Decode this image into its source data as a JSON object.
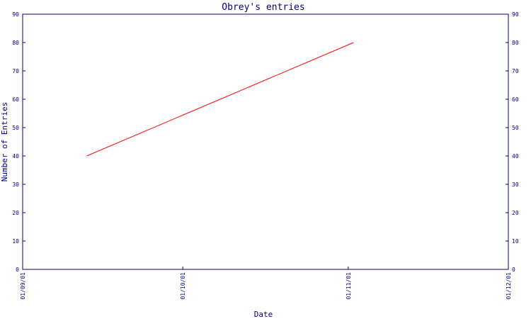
{
  "chart_data": {
    "type": "line",
    "title": "Obrey's entries",
    "xlabel": "Date",
    "ylabel": "Number of Entries",
    "x_ticks": [
      {
        "label": "01/09/01",
        "date": "2001-09-01"
      },
      {
        "label": "01/10/01",
        "date": "2001-10-01"
      },
      {
        "label": "01/11/01",
        "date": "2001-11-01"
      },
      {
        "label": "01/12/01",
        "date": "2001-12-01"
      }
    ],
    "x_range": [
      "2001-09-01",
      "2001-12-01"
    ],
    "ylim": [
      0,
      90
    ],
    "y_ticks": [
      0,
      10,
      20,
      30,
      40,
      50,
      60,
      70,
      80,
      90
    ],
    "right_axis_ticks": true,
    "grid": false,
    "series": [
      {
        "color": "#ff0000",
        "points": [
          {
            "x": "2001-09-13",
            "y": 40
          },
          {
            "x": "2001-11-02",
            "y": 80
          }
        ]
      }
    ]
  },
  "colors": {
    "axis": "#000080",
    "text": "#000080",
    "line": "#ff0000"
  }
}
